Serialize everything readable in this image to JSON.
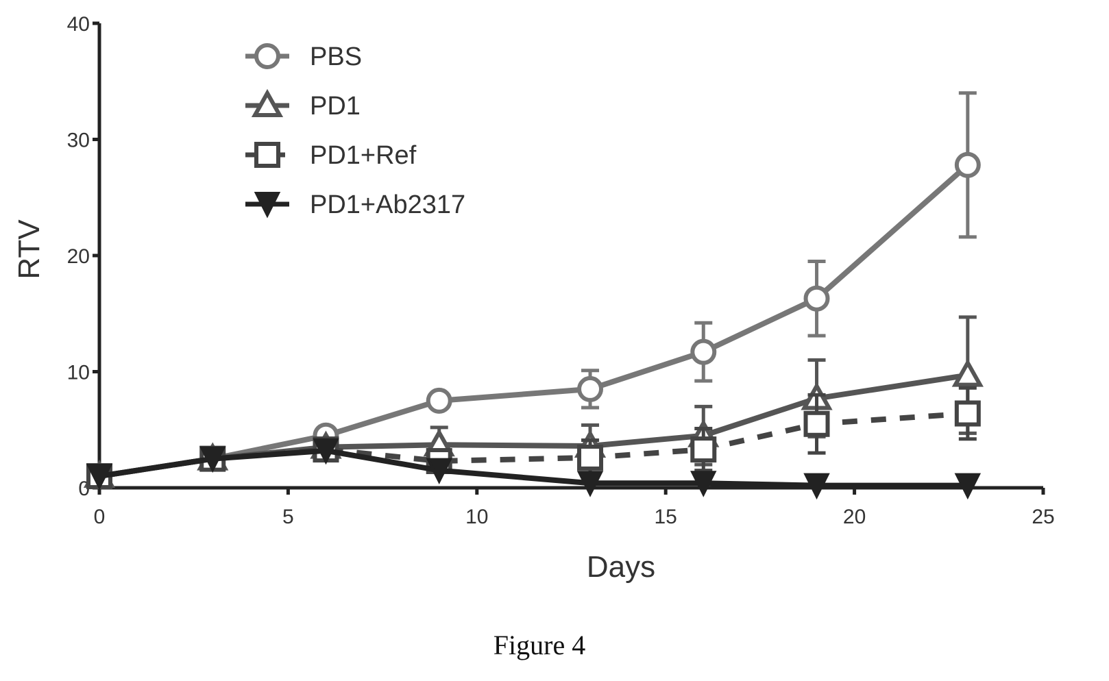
{
  "caption": "Figure 4",
  "chart_data": {
    "type": "line",
    "xlabel": "Days",
    "ylabel": "RTV",
    "xlim": [
      0,
      25
    ],
    "ylim": [
      0,
      40
    ],
    "x_ticks": [
      0,
      5,
      10,
      15,
      20,
      25
    ],
    "y_ticks": [
      0,
      10,
      20,
      30,
      40
    ],
    "x_tick_labels": [
      "0",
      "5",
      "10",
      "15",
      "20",
      "25"
    ],
    "y_tick_labels": [
      "0",
      "10",
      "20",
      "30",
      "40"
    ],
    "grid": false,
    "legend_position": "top-left",
    "series": [
      {
        "name": "PBS",
        "marker": "circle",
        "line_style": "solid",
        "color": "#777777",
        "x": [
          0,
          3,
          6,
          9,
          13,
          16,
          19,
          23
        ],
        "y": [
          1,
          2.5,
          4.5,
          7.5,
          8.5,
          11.7,
          16.3,
          27.8
        ],
        "err": [
          0,
          0,
          0,
          0,
          1.6,
          2.5,
          3.2,
          6.2
        ]
      },
      {
        "name": "PD1",
        "marker": "triangle",
        "line_style": "solid",
        "color": "#555555",
        "x": [
          0,
          3,
          6,
          9,
          13,
          16,
          19,
          23
        ],
        "y": [
          1,
          2.5,
          3.5,
          3.7,
          3.6,
          4.5,
          7.7,
          9.7
        ],
        "err": [
          0,
          0,
          0,
          1.5,
          1.8,
          2.5,
          3.3,
          5.0
        ]
      },
      {
        "name": "PD1+Ref",
        "marker": "square",
        "line_style": "dashed",
        "color": "#444444",
        "x": [
          0,
          3,
          6,
          9,
          13,
          16,
          19,
          23
        ],
        "y": [
          1,
          2.5,
          3.3,
          2.3,
          2.6,
          3.3,
          5.5,
          6.4
        ],
        "err": [
          0,
          0,
          0,
          0,
          1.5,
          1.8,
          2.5,
          2.2
        ]
      },
      {
        "name": "PD1+Ab2317",
        "marker": "star",
        "line_style": "solid",
        "color": "#222222",
        "x": [
          0,
          3,
          6,
          9,
          13,
          16,
          19,
          23
        ],
        "y": [
          1,
          2.5,
          3.2,
          1.5,
          0.4,
          0.4,
          0.2,
          0.2
        ],
        "err": [
          0,
          0,
          0,
          0,
          0,
          0,
          0,
          0
        ]
      }
    ]
  }
}
